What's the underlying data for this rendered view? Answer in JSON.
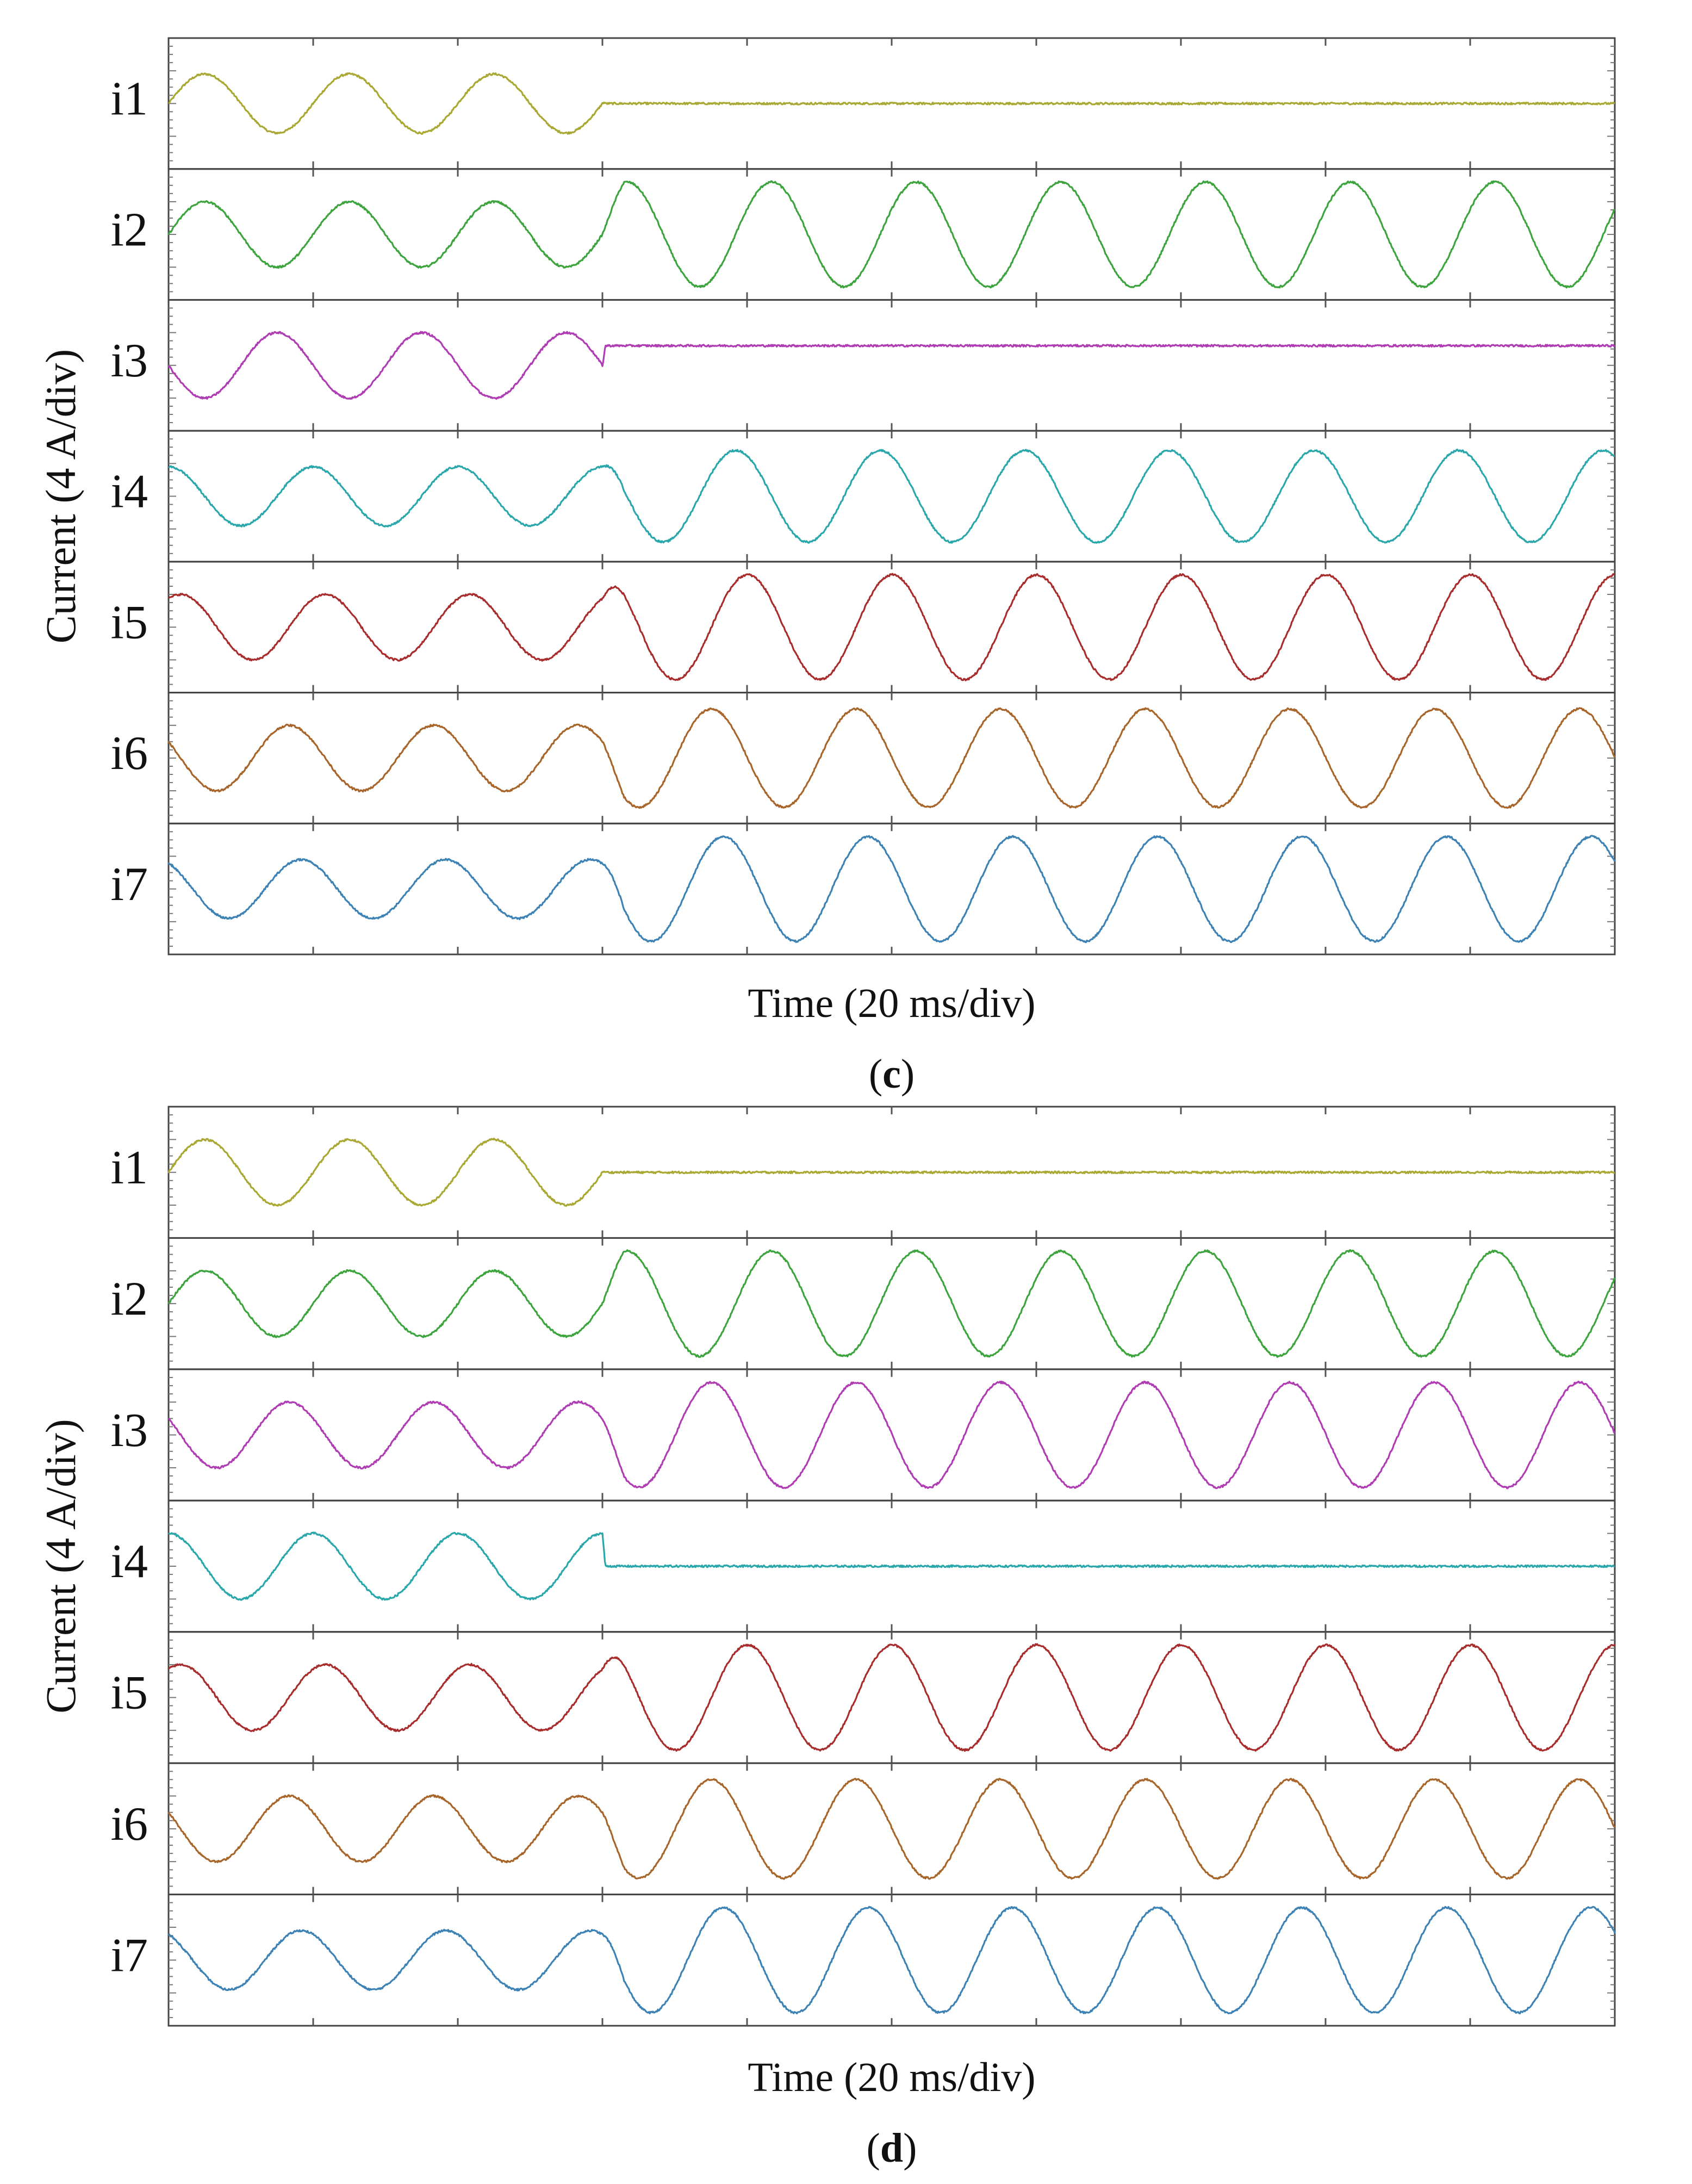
{
  "chart_data": [
    {
      "type": "line",
      "caption_letter": "c",
      "ylabel": "Current (4 A/div)",
      "xlabel": "Time (20 ms/div)",
      "x_unit": "div",
      "y_unit": "div",
      "xlim": [
        0,
        10
      ],
      "x_tick_count": 10,
      "grid": false,
      "fault_time_div": 3.0,
      "series": [
        {
          "name": "i1",
          "color": "#a8a832",
          "amp_pre": 0.9,
          "amp_post": 0.0,
          "offset_pre": 0.0,
          "offset_post": 0.0,
          "phase_deg": 0
        },
        {
          "name": "i2",
          "color": "#3ca43c",
          "amp_pre": 1.0,
          "amp_post": 1.6,
          "offset_pre": 0.0,
          "offset_post": 0.0,
          "phase_deg": 0
        },
        {
          "name": "i3",
          "color": "#b03cb4",
          "amp_pre": 1.0,
          "amp_post": 0.0,
          "offset_pre": 0.0,
          "offset_post": 0.6,
          "phase_deg": 180
        },
        {
          "name": "i4",
          "color": "#2aa7aa",
          "amp_pre": 0.9,
          "amp_post": 1.4,
          "offset_pre": 0.0,
          "offset_post": 0.0,
          "phase_deg": 90
        },
        {
          "name": "i5",
          "color": "#a82c2c",
          "amp_pre": 1.0,
          "amp_post": 1.6,
          "offset_pre": 0.0,
          "offset_post": 0.0,
          "phase_deg": 60
        },
        {
          "name": "i6",
          "color": "#a8652a",
          "amp_pre": 1.0,
          "amp_post": 1.5,
          "offset_pre": 0.0,
          "offset_post": 0.0,
          "phase_deg": 150
        },
        {
          "name": "i7",
          "color": "#3c82b4",
          "amp_pre": 0.9,
          "amp_post": 1.6,
          "offset_pre": 0.0,
          "offset_post": 0.0,
          "phase_deg": 120
        }
      ]
    },
    {
      "type": "line",
      "caption_letter": "d",
      "ylabel": "Current (4 A/div)",
      "xlabel": "Time (20 ms/div)",
      "x_unit": "div",
      "y_unit": "div",
      "xlim": [
        0,
        10
      ],
      "x_tick_count": 10,
      "grid": false,
      "fault_time_div": 3.0,
      "series": [
        {
          "name": "i1",
          "color": "#a8a832",
          "amp_pre": 1.0,
          "amp_post": 0.0,
          "offset_pre": 0.0,
          "offset_post": 0.0,
          "phase_deg": 0
        },
        {
          "name": "i2",
          "color": "#3ca43c",
          "amp_pre": 1.0,
          "amp_post": 1.6,
          "offset_pre": 0.0,
          "offset_post": 0.0,
          "phase_deg": 0
        },
        {
          "name": "i3",
          "color": "#b03cb4",
          "amp_pre": 1.0,
          "amp_post": 1.6,
          "offset_pre": 0.0,
          "offset_post": 0.0,
          "phase_deg": 150
        },
        {
          "name": "i4",
          "color": "#2aa7aa",
          "amp_pre": 1.0,
          "amp_post": 0.0,
          "offset_pre": 0.0,
          "offset_post": 0.0,
          "phase_deg": 90
        },
        {
          "name": "i5",
          "color": "#a82c2c",
          "amp_pre": 1.0,
          "amp_post": 1.6,
          "offset_pre": 0.0,
          "offset_post": 0.0,
          "phase_deg": 60
        },
        {
          "name": "i6",
          "color": "#a8652a",
          "amp_pre": 1.0,
          "amp_post": 1.5,
          "offset_pre": 0.0,
          "offset_post": 0.0,
          "phase_deg": 150
        },
        {
          "name": "i7",
          "color": "#3c82b4",
          "amp_pre": 0.9,
          "amp_post": 1.6,
          "offset_pre": 0.0,
          "offset_post": 0.0,
          "phase_deg": 120
        }
      ]
    }
  ]
}
